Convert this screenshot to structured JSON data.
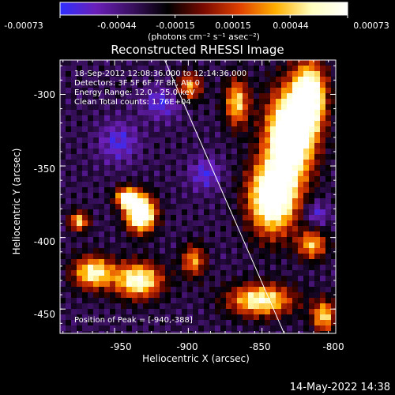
{
  "colorbar": {
    "tick_labels": [
      "-0.00073",
      "-0.00044",
      "-0.00015",
      "0.00015",
      "0.00044",
      "0.00073"
    ],
    "unit_label": "(photons cm⁻² s⁻¹ asec⁻²)",
    "colormap": [
      "#2f2fff",
      "#6a1fb8",
      "#3a1060",
      "#000000",
      "#7a0a00",
      "#e04000",
      "#ffb000",
      "#ffffc0",
      "#ffffff"
    ]
  },
  "plot": {
    "title": "Reconstructed RHESSI Image",
    "info_lines": [
      "18-Sep-2012 12:08:36.000 to 12:14:36.000",
      "Detectors: 3F 5F 6F 7F 8F, Att 0",
      "Energy Range: 12.0 - 25.0 keV",
      "Clean    Total counts: 1.76E+04"
    ],
    "peak_label": "Position of Peak = [-940,-388]",
    "x_label": "Heliocentric X (arcsec)",
    "y_label": "Heliocentric Y (arcsec)",
    "x_ticks": [
      "-950",
      "-900",
      "-850",
      "-800"
    ],
    "y_ticks": [
      "-300",
      "-350",
      "-400",
      "-450"
    ],
    "x_range": [
      -987,
      -800
    ],
    "y_range": [
      -467,
      -276
    ],
    "x_tick_values": [
      -950,
      -900,
      -850,
      -800
    ],
    "y_tick_values": [
      -300,
      -350,
      -400,
      -450
    ],
    "limb_line": {
      "x": [
        -916,
        -835
      ],
      "y": [
        -276,
        -467
      ]
    }
  },
  "timestamp": "14-May-2022 14:38"
}
